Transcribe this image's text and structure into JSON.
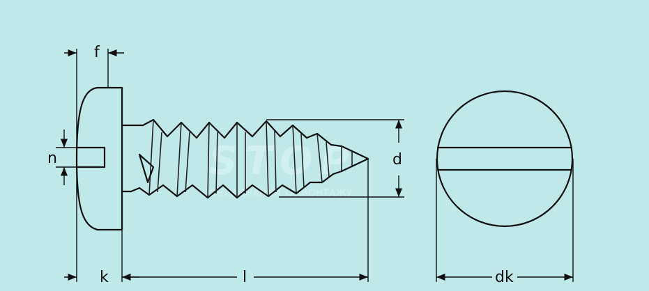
{
  "labels": {
    "f": "f",
    "n": "n",
    "d": "d",
    "k": "k",
    "l": "l",
    "dk": "dk"
  },
  "colors": {
    "background": "#bfe8e8",
    "line": "#111111"
  }
}
